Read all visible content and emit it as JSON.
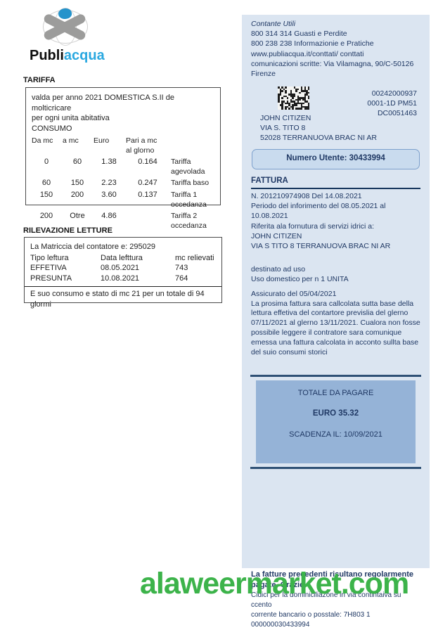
{
  "logo": {
    "brand_black": "Publi",
    "brand_blue": "acqua"
  },
  "colors": {
    "accent_blue": "#2aa8e0",
    "panel_bg": "#dbe5f1",
    "totale_box_bg": "#95b3d7",
    "numero_box_bg": "#c9dbee",
    "navy_text": "#1f3864",
    "rule_dark": "#2e5075",
    "watermark_green": "#3cb34a"
  },
  "tariffa": {
    "heading": "TARIFFA",
    "intro_line1": "valda per anno 2021 DOMESTICA S.II de molticricare",
    "intro_line2": "per ogni unita abitativa",
    "intro_line3": "CONSUMO",
    "col_da": "Da mc",
    "col_a": "a mc",
    "col_euro": "Euro",
    "col_pari_1": "Pari a mc",
    "col_pari_2": "al glorno",
    "rows": [
      {
        "da": "0",
        "a": "60",
        "euro": "1.38",
        "pari": "0.164",
        "label": "Tariffa agevolada"
      },
      {
        "da": "60",
        "a": "150",
        "euro": "2.23",
        "pari": "0.247",
        "label": "Tariffa baso"
      },
      {
        "da": "150",
        "a": "200",
        "euro": "3.60",
        "pari": "0.137",
        "label": "Tariffa 1 occedanza"
      },
      {
        "da": "200",
        "a": "Otre",
        "euro": "4.86",
        "pari": "",
        "label": "Tariffa 2 occedanza"
      }
    ]
  },
  "rilevazione": {
    "heading": "RILEVAZIONE LETTURE",
    "matricola_line": "La Matriccia del contatore e: 295029",
    "col_tipo": "Tipo leftura",
    "col_data": "Data lefttura",
    "col_mc": "mc relievati",
    "rows": [
      {
        "tipo": "EFFETIVA",
        "data": "08.05.2021",
        "mc": "743"
      },
      {
        "tipo": "PRESUNTA",
        "data": "10.08.2021",
        "mc": "764"
      }
    ],
    "footer": "E suo consumo e stato di mc 21 per un totale di 94 glormi"
  },
  "contact": {
    "title": "Contante Utili",
    "line1": "800 314 314 Guasti e Perdite",
    "line2": "800 238 238 Informazionie e Pratiche",
    "line3": "www.publiacqua.it/conttati/ conttati",
    "line4": "comunicazioni scritte: Via Vilamagna, 90/C-50126",
    "line5": "Firenze"
  },
  "address": {
    "code1": "00242000937",
    "code2": "0001-1D PM51",
    "code3": "DC0051463",
    "name": "JOHN CITIZEN",
    "street": "VIA S. TITO 8",
    "city": "52028 TERRANUOVA BRAC NI AR"
  },
  "numero_utente": "Numero Utente: 30433994",
  "fattura": {
    "heading": "FATTURA",
    "line1": "N. 201210974908 Del 14.08.2021",
    "line2": "Periodo del inforimento del 08.05.2021 al 10.08.2021",
    "line3": "Riferita ala fornutura di servizi idrici a:",
    "line4": "JOHN CITIZEN",
    "line5": "VIA S TITO 8 TERRANUOVA BRAC NI AR",
    "uso1": "destinato ad uso",
    "uso2": "Uso domestico per n 1 UNITA",
    "assicurato": "Assicurato del 05/04/2021",
    "paragraph": "La prosima fattura sara callcolata sutta base della lettura effetiva del contartore previslia del glerno 07/11/2021 al glerno 13/11/2021. Cualora non fosse possibile leggere il contratore sara comunique emessa una fattura calcolata in acconto sullta base del suio consumi storici"
  },
  "totale": {
    "title": "TOTALE DA PAGARE",
    "amount": "EURO 35.32",
    "scadenza": "SCADENZA IL: 10/09/2021"
  },
  "panel_footer": {
    "bold_text": "La fatture precedenti risultano regolarmente pagate. Grazie.",
    "reg_line1": "Cidici per la dominiciliazone  in via contintaiva su ccento",
    "reg_line2": "corrente bancario o posstale: 7H803 1 000000030433994"
  },
  "watermark": "alaweermarket.com"
}
